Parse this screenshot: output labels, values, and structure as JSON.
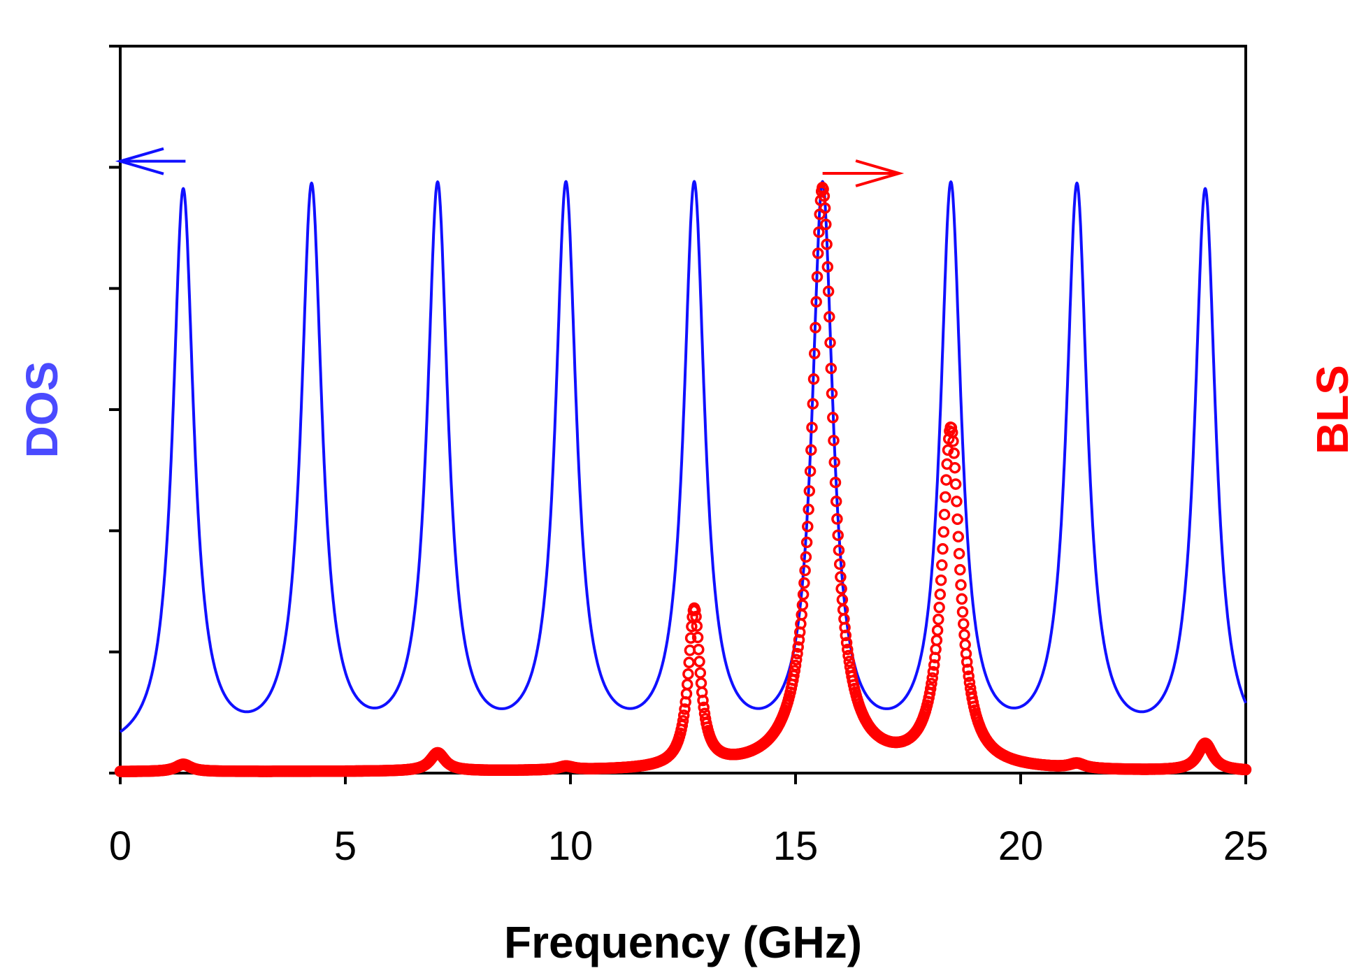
{
  "chart_data": {
    "type": "line",
    "title": "",
    "xlabel": "Frequency (GHz)",
    "ylabel_left": "DOS",
    "ylabel_right": "BLS",
    "xlim": [
      0,
      25
    ],
    "ylim": [
      0,
      1.2
    ],
    "x_ticks": [
      0,
      5,
      10,
      15,
      20,
      25
    ],
    "x_tick_labels": [
      "0",
      "5",
      "10",
      "15",
      "20",
      "25"
    ],
    "y_ticks": [
      0,
      0.2,
      0.4,
      0.6,
      0.8,
      1.0,
      1.2
    ],
    "grid": false,
    "legend": "none",
    "series": [
      {
        "name": "DOS",
        "axis": "left",
        "style": "line",
        "color": "#1010ff",
        "peak_positions": [
          1.4,
          4.25,
          7.05,
          9.9,
          12.75,
          15.6,
          18.45,
          21.25,
          24.1
        ],
        "peak_height": 0.98,
        "baseline": 0.025,
        "half_width": 0.28
      },
      {
        "name": "BLS",
        "axis": "right",
        "style": "open-circles",
        "color": "#ff0000",
        "x_range": [
          0,
          25
        ],
        "baseline": 0.002,
        "peaks": [
          {
            "x": 1.4,
            "height": 0.012,
            "half_width": 0.2
          },
          {
            "x": 7.05,
            "height": 0.03,
            "half_width": 0.2
          },
          {
            "x": 9.9,
            "height": 0.006,
            "half_width": 0.2
          },
          {
            "x": 12.75,
            "height": 0.26,
            "half_width": 0.16
          },
          {
            "x": 15.6,
            "height": 0.96,
            "half_width": 0.28
          },
          {
            "x": 18.45,
            "height": 0.56,
            "half_width": 0.24
          },
          {
            "x": 21.25,
            "height": 0.008,
            "half_width": 0.2
          },
          {
            "x": 24.1,
            "height": 0.045,
            "half_width": 0.2
          }
        ]
      }
    ],
    "annotations": [
      {
        "name": "left-arrow",
        "color": "#1010ff",
        "direction": "left",
        "x_from": 1.45,
        "x_to": 0,
        "y": 1.01
      },
      {
        "name": "right-arrow",
        "color": "#ff0000",
        "direction": "right",
        "x_from": 15.6,
        "x_to": 17.3,
        "y": 0.99
      }
    ]
  },
  "colors": {
    "dos": "#1010ff",
    "dos_label": "#4a4aff",
    "bls": "#ff0000",
    "axis": "#000000"
  }
}
